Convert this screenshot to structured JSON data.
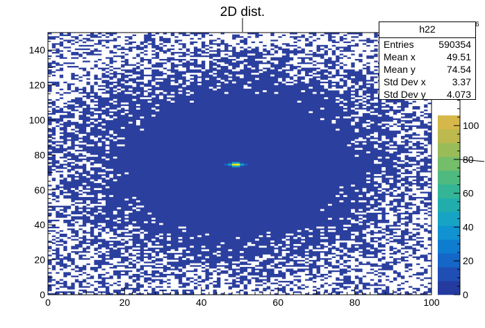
{
  "chart_data": {
    "type": "heatmap",
    "title": "2D dist.",
    "xlabel": "",
    "ylabel": "",
    "xlim": [
      0,
      100
    ],
    "ylim": [
      0,
      150
    ],
    "x_ticks": [
      "0",
      "20",
      "40",
      "60",
      "80",
      "100"
    ],
    "y_ticks": [
      "0",
      "20",
      "40",
      "60",
      "80",
      "100",
      "120",
      "140"
    ],
    "peak": {
      "x": 49.5,
      "y": 74.5,
      "value": 155
    },
    "colorbar": {
      "range": [
        0,
        155
      ],
      "ticks": [
        "0",
        "20",
        "40",
        "60",
        "80",
        "100"
      ],
      "exponent_label": "6",
      "palette": [
        "#243a9f",
        "#1f4fb5",
        "#1466c7",
        "#0f7dcf",
        "#1192d1",
        "#17a3c3",
        "#22adad",
        "#33b596",
        "#4fba7f",
        "#74bd6a",
        "#99bc59",
        "#bdb94f",
        "#d6b84a"
      ]
    },
    "background_color": "#2b3f9e",
    "empty_color": "#ffffff"
  },
  "stats": {
    "name": "h22",
    "rows": [
      {
        "label": "Entries",
        "value": "590354"
      },
      {
        "label": "Mean x",
        "value": "49.51"
      },
      {
        "label": "Mean y",
        "value": "74.54"
      },
      {
        "label": "Std Dev x",
        "value": "3.37"
      },
      {
        "label": "Std Dev y",
        "value": "4.073"
      }
    ]
  }
}
